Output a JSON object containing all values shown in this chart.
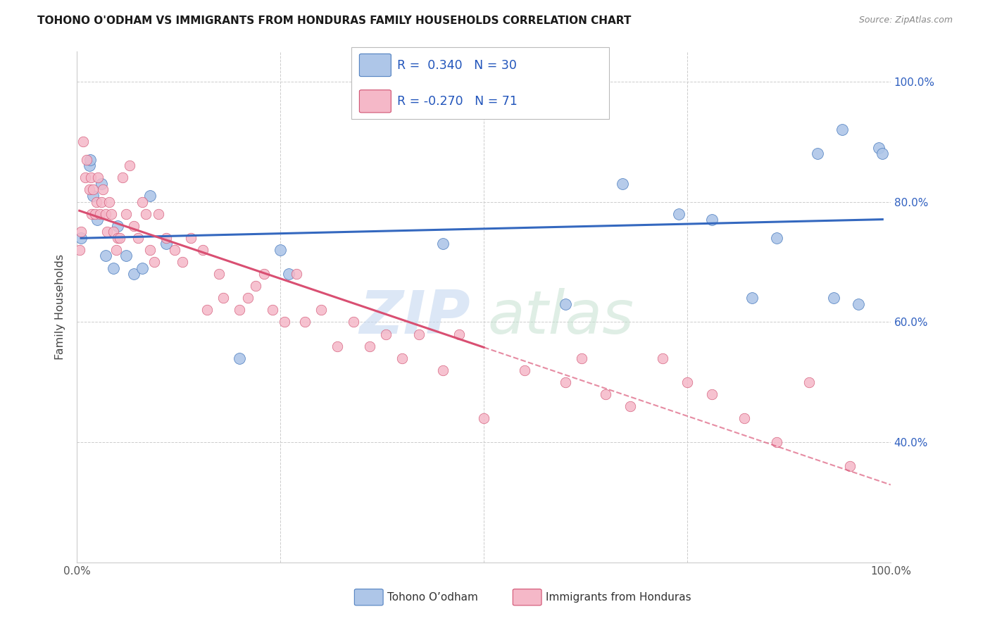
{
  "title": "TOHONO O'ODHAM VS IMMIGRANTS FROM HONDURAS FAMILY HOUSEHOLDS CORRELATION CHART",
  "source": "Source: ZipAtlas.com",
  "ylabel": "Family Households",
  "blue_label": "Tohono O’odham",
  "pink_label": "Immigrants from Honduras",
  "blue_R": 0.34,
  "blue_N": 30,
  "pink_R": -0.27,
  "pink_N": 71,
  "blue_color": "#aec6e8",
  "pink_color": "#f5b8c8",
  "blue_edge_color": "#5080c0",
  "pink_edge_color": "#d05070",
  "blue_line_color": "#3468bf",
  "pink_line_color": "#d94f72",
  "blue_x": [
    0.5,
    1.5,
    1.6,
    2.0,
    2.5,
    3.0,
    3.5,
    4.5,
    5.0,
    6.0,
    7.0,
    8.0,
    9.0,
    11.0,
    20.0,
    25.0,
    26.0,
    45.0,
    60.0,
    67.0,
    74.0,
    78.0,
    83.0,
    86.0,
    91.0,
    93.0,
    94.0,
    96.0,
    98.5,
    99.0
  ],
  "blue_y": [
    74.0,
    86.0,
    87.0,
    81.0,
    77.0,
    83.0,
    71.0,
    69.0,
    76.0,
    71.0,
    68.0,
    69.0,
    81.0,
    73.0,
    54.0,
    72.0,
    68.0,
    73.0,
    63.0,
    83.0,
    78.0,
    77.0,
    64.0,
    74.0,
    88.0,
    64.0,
    92.0,
    63.0,
    89.0,
    88.0
  ],
  "pink_x": [
    0.3,
    0.5,
    0.8,
    1.0,
    1.2,
    1.5,
    1.7,
    1.8,
    2.0,
    2.2,
    2.4,
    2.6,
    2.8,
    3.0,
    3.2,
    3.5,
    3.7,
    4.0,
    4.2,
    4.5,
    4.8,
    5.0,
    5.3,
    5.6,
    6.0,
    6.5,
    7.0,
    7.5,
    8.0,
    8.5,
    9.0,
    9.5,
    10.0,
    11.0,
    12.0,
    13.0,
    14.0,
    15.5,
    16.0,
    17.5,
    18.0,
    20.0,
    21.0,
    22.0,
    23.0,
    24.0,
    25.5,
    27.0,
    28.0,
    30.0,
    32.0,
    34.0,
    36.0,
    38.0,
    40.0,
    42.0,
    45.0,
    47.0,
    50.0,
    55.0,
    60.0,
    62.0,
    65.0,
    68.0,
    72.0,
    75.0,
    78.0,
    82.0,
    86.0,
    90.0,
    95.0
  ],
  "pink_y": [
    72.0,
    75.0,
    90.0,
    84.0,
    87.0,
    82.0,
    84.0,
    78.0,
    82.0,
    78.0,
    80.0,
    84.0,
    78.0,
    80.0,
    82.0,
    78.0,
    75.0,
    80.0,
    78.0,
    75.0,
    72.0,
    74.0,
    74.0,
    84.0,
    78.0,
    86.0,
    76.0,
    74.0,
    80.0,
    78.0,
    72.0,
    70.0,
    78.0,
    74.0,
    72.0,
    70.0,
    74.0,
    72.0,
    62.0,
    68.0,
    64.0,
    62.0,
    64.0,
    66.0,
    68.0,
    62.0,
    60.0,
    68.0,
    60.0,
    62.0,
    56.0,
    60.0,
    56.0,
    58.0,
    54.0,
    58.0,
    52.0,
    58.0,
    44.0,
    52.0,
    50.0,
    54.0,
    48.0,
    46.0,
    54.0,
    50.0,
    48.0,
    44.0,
    40.0,
    50.0,
    36.0
  ],
  "background_color": "#ffffff",
  "grid_color": "#cccccc",
  "xlim": [
    0,
    100
  ],
  "ylim": [
    20,
    105
  ],
  "yticks": [
    40,
    60,
    80,
    100
  ],
  "ytick_labels": [
    "40.0%",
    "60.0%",
    "80.0%",
    "100.0%"
  ],
  "xtick_labels": [
    "0.0%",
    "100.0%"
  ],
  "pink_solid_end": 50
}
